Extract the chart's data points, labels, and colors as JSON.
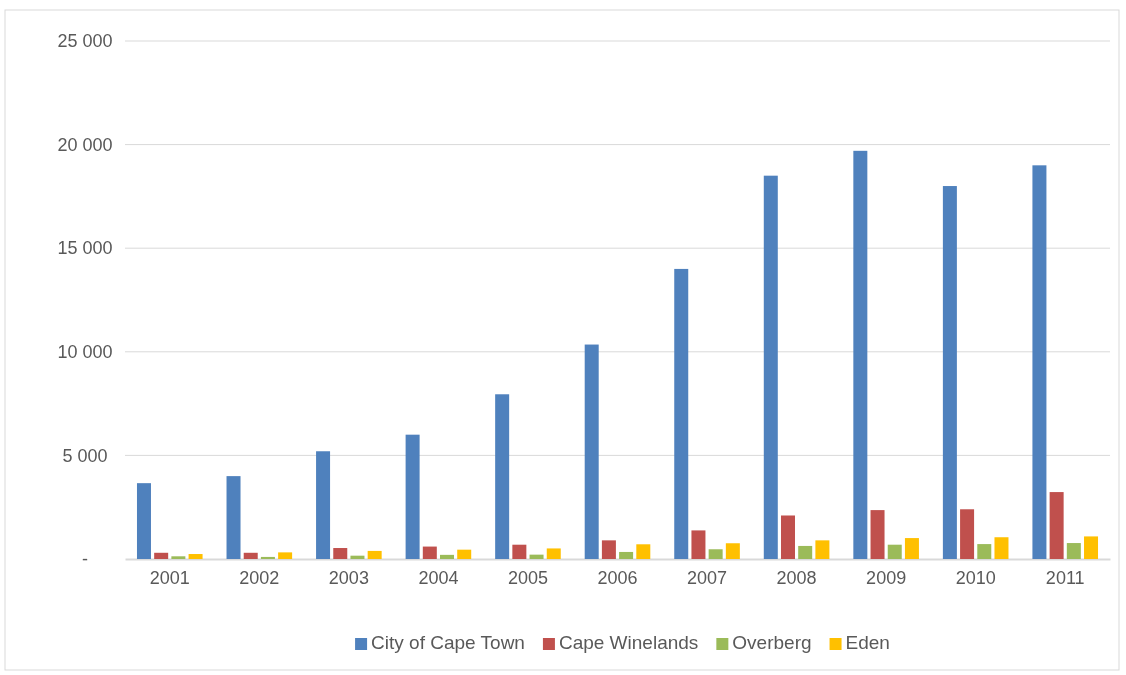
{
  "chart_data": {
    "type": "bar",
    "categories": [
      "2001",
      "2002",
      "2003",
      "2004",
      "2005",
      "2006",
      "2007",
      "2008",
      "2009",
      "2010",
      "2011"
    ],
    "series": [
      {
        "name": "City of Cape Town",
        "color": "#4f81bd",
        "values": [
          3660,
          4000,
          5200,
          6000,
          7950,
          10350,
          14000,
          18500,
          19700,
          18000,
          19000
        ]
      },
      {
        "name": "Cape Winelands",
        "color": "#c0504d",
        "values": [
          300,
          300,
          530,
          600,
          690,
          900,
          1380,
          2100,
          2360,
          2400,
          3230
        ]
      },
      {
        "name": "Overberg",
        "color": "#9bbb59",
        "values": [
          130,
          100,
          160,
          200,
          210,
          340,
          470,
          630,
          690,
          720,
          770
        ]
      },
      {
        "name": "Eden",
        "color": "#ffc000",
        "values": [
          240,
          320,
          390,
          450,
          510,
          710,
          760,
          900,
          1010,
          1050,
          1090
        ]
      }
    ],
    "ylim": [
      0,
      25000
    ],
    "yticks": [
      {
        "value": 0,
        "label": "-"
      },
      {
        "value": 5000,
        "label": "5 000"
      },
      {
        "value": 10000,
        "label": "10 000"
      },
      {
        "value": 15000,
        "label": "15 000"
      },
      {
        "value": 20000,
        "label": "20 000"
      },
      {
        "value": 25000,
        "label": "25 000"
      }
    ],
    "grid": "y",
    "legend": "bottom"
  }
}
